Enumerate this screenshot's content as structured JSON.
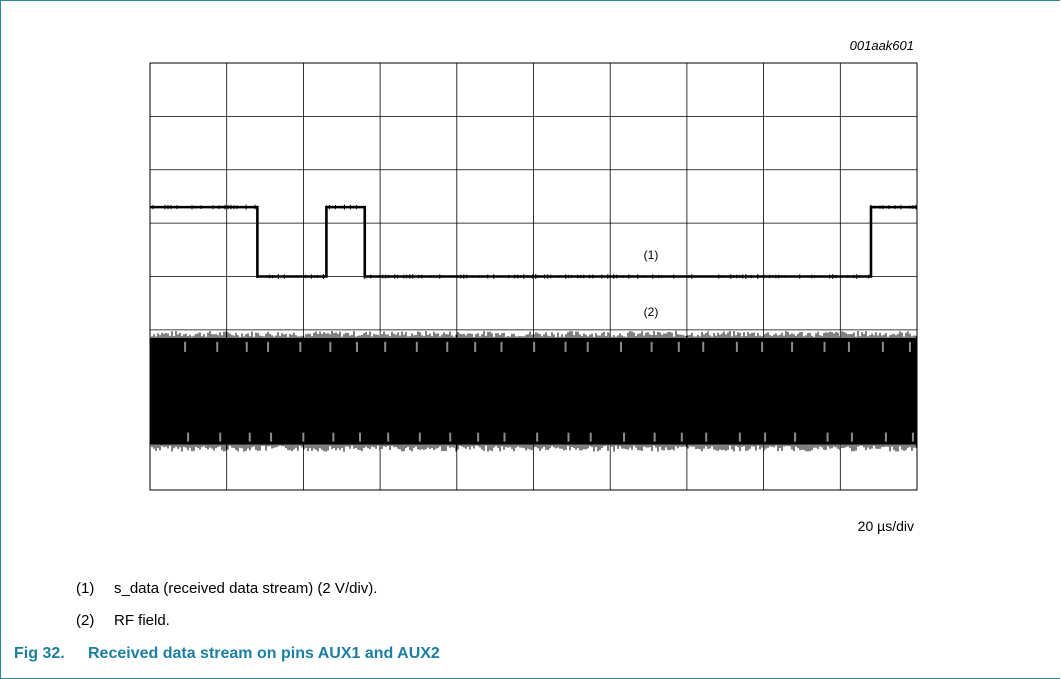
{
  "figure_id": "001aak601",
  "timebase": "20 µs/div",
  "notes": [
    {
      "num": "(1)",
      "text": "s_data (received data stream) (2 V/div)."
    },
    {
      "num": "(2)",
      "text": "RF field."
    }
  ],
  "caption": {
    "fig": "Fig 32.",
    "title": "Received data stream on pins AUX1 and AUX2"
  },
  "colors": {
    "trace": "#000000",
    "grid": "#000000",
    "caption": "#1a7fa0",
    "frame": "#2a8a9a"
  },
  "chart_data": {
    "type": "line",
    "title": "",
    "divisions": {
      "x": 10,
      "y": 8
    },
    "x_unit": "µs",
    "x_scale_per_div": 20,
    "xlim": [
      0,
      200
    ],
    "grid": true,
    "series": [
      {
        "name": "(1)",
        "label": "(1)",
        "description": "s_data (received data stream)",
        "y_scale": "2 V/div",
        "y_low_div": 4.0,
        "y_high_div": 5.3,
        "points": [
          [
            0,
            "high"
          ],
          [
            28,
            "high"
          ],
          [
            28,
            "low"
          ],
          [
            46,
            "low"
          ],
          [
            46,
            "high"
          ],
          [
            56,
            "high"
          ],
          [
            56,
            "low"
          ],
          [
            188,
            "low"
          ],
          [
            188,
            "high"
          ],
          [
            200,
            "high"
          ]
        ]
      },
      {
        "name": "(2)",
        "label": "(2)",
        "description": "RF field",
        "envelope_top_div": 2.85,
        "envelope_bottom_div": 0.85
      }
    ]
  }
}
